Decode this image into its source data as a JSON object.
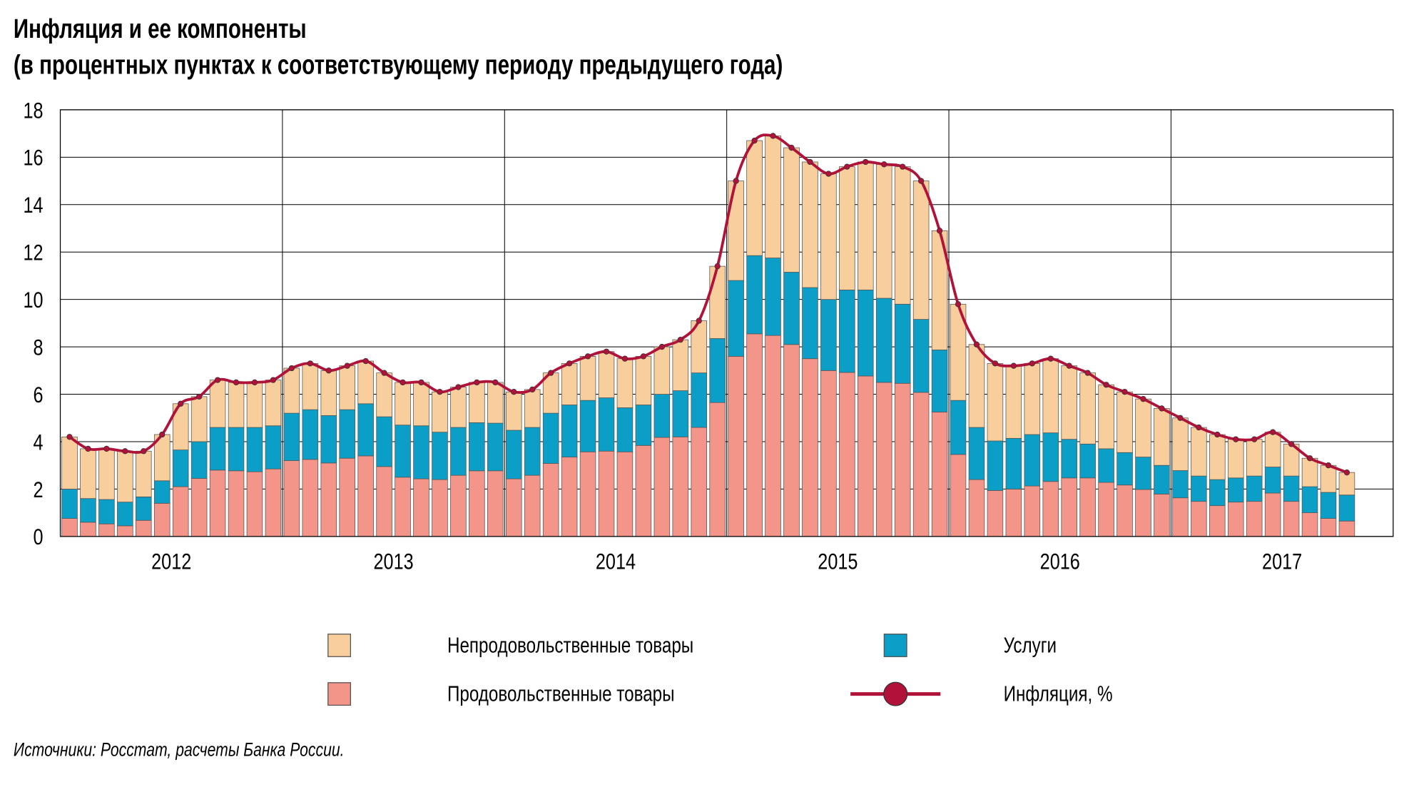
{
  "title": "Инфляция и ее компоненты",
  "subtitle": "(в процентных пунктах к соответствующему периоду предыдущего года)",
  "source": "Источники: Росстат, расчеты Банка России.",
  "colors": {
    "nonfood": "#f8cf9c",
    "services": "#0b9ec6",
    "food": "#f4958a",
    "inflation": "#b0123a"
  },
  "legend": {
    "nonfood": "Непродовольственные товары",
    "services": "Услуги",
    "food": "Продовольственные товары",
    "inflation": "Инфляция, %"
  },
  "chart_data": {
    "type": "bar",
    "stacked": true,
    "title": "Инфляция и ее компоненты",
    "subtitle": "(в процентных пунктах к соответствующему периоду предыдущего года)",
    "period": "monthly, Jan 2012 – Oct 2017",
    "ylim": [
      0,
      18
    ],
    "yticks": [
      0,
      2,
      4,
      6,
      8,
      10,
      12,
      14,
      16,
      18
    ],
    "xtick_labels": [
      "2012",
      "2013",
      "2014",
      "2015",
      "2016",
      "2017"
    ],
    "grid": true,
    "legend_position": "bottom",
    "series": [
      {
        "name": "Продовольственные товары",
        "key": "food",
        "values": [
          0.76,
          0.6,
          0.53,
          0.45,
          0.68,
          1.4,
          2.1,
          2.45,
          2.8,
          2.77,
          2.73,
          2.85,
          3.2,
          3.25,
          3.1,
          3.3,
          3.4,
          2.95,
          2.5,
          2.43,
          2.4,
          2.58,
          2.77,
          2.77,
          2.43,
          2.58,
          3.08,
          3.35,
          3.57,
          3.6,
          3.57,
          3.84,
          4.18,
          4.2,
          4.6,
          5.65,
          7.6,
          8.55,
          8.48,
          8.1,
          7.5,
          7.0,
          6.92,
          6.77,
          6.5,
          6.46,
          6.08,
          5.25,
          3.46,
          2.4,
          1.94,
          2.0,
          2.13,
          2.32,
          2.47,
          2.47,
          2.28,
          2.17,
          1.98,
          1.79,
          1.63,
          1.48,
          1.3,
          1.45,
          1.48,
          1.83,
          1.48,
          1.0,
          0.76,
          0.65
        ]
      },
      {
        "name": "Услуги",
        "key": "services",
        "values": [
          1.24,
          1.0,
          1.03,
          1.0,
          0.99,
          0.95,
          1.55,
          1.55,
          1.8,
          1.83,
          1.87,
          1.82,
          2.0,
          2.1,
          2.0,
          2.05,
          2.2,
          2.1,
          2.2,
          2.24,
          2.0,
          2.02,
          2.03,
          2.01,
          2.05,
          2.02,
          2.12,
          2.2,
          2.17,
          2.25,
          1.86,
          1.71,
          1.82,
          1.95,
          2.3,
          2.7,
          3.2,
          3.3,
          3.27,
          3.05,
          3.0,
          3.0,
          3.48,
          3.63,
          3.55,
          3.34,
          3.08,
          2.62,
          2.28,
          2.2,
          2.09,
          2.14,
          2.17,
          2.05,
          1.63,
          1.43,
          1.42,
          1.37,
          1.37,
          1.21,
          1.15,
          1.07,
          1.1,
          1.02,
          1.07,
          1.1,
          1.07,
          1.1,
          1.1,
          1.1
        ]
      },
      {
        "name": "Непродовольственные товары",
        "key": "nonfood",
        "values": [
          2.2,
          2.1,
          2.14,
          2.15,
          1.93,
          1.95,
          1.95,
          1.9,
          2.0,
          1.9,
          1.9,
          1.93,
          1.9,
          1.95,
          1.9,
          1.85,
          1.8,
          1.85,
          1.8,
          1.83,
          1.7,
          1.7,
          1.7,
          1.72,
          1.62,
          1.6,
          1.7,
          1.75,
          1.86,
          1.95,
          2.07,
          2.05,
          2.0,
          2.15,
          2.2,
          3.05,
          4.2,
          4.85,
          5.15,
          5.25,
          5.3,
          5.3,
          5.2,
          5.4,
          5.65,
          5.8,
          5.84,
          5.03,
          4.06,
          3.5,
          3.27,
          3.06,
          3.0,
          3.13,
          3.1,
          3.0,
          2.7,
          2.56,
          2.45,
          2.4,
          2.22,
          2.05,
          1.9,
          1.63,
          1.55,
          1.47,
          1.35,
          1.2,
          1.14,
          0.95
        ]
      },
      {
        "name": "Инфляция, %",
        "key": "inflation",
        "type": "line",
        "values": [
          4.2,
          3.7,
          3.7,
          3.6,
          3.6,
          4.3,
          5.6,
          5.9,
          6.6,
          6.5,
          6.5,
          6.6,
          7.1,
          7.3,
          7.0,
          7.2,
          7.4,
          6.9,
          6.5,
          6.5,
          6.1,
          6.3,
          6.5,
          6.5,
          6.1,
          6.2,
          6.9,
          7.3,
          7.6,
          7.8,
          7.5,
          7.6,
          8.0,
          8.3,
          9.1,
          11.4,
          15.0,
          16.7,
          16.9,
          16.4,
          15.8,
          15.3,
          15.6,
          15.8,
          15.7,
          15.6,
          15.0,
          12.9,
          9.8,
          8.1,
          7.3,
          7.2,
          7.3,
          7.5,
          7.2,
          6.9,
          6.4,
          6.1,
          5.8,
          5.4,
          5.0,
          4.6,
          4.3,
          4.1,
          4.1,
          4.4,
          3.9,
          3.3,
          3.0,
          2.7
        ]
      }
    ]
  }
}
